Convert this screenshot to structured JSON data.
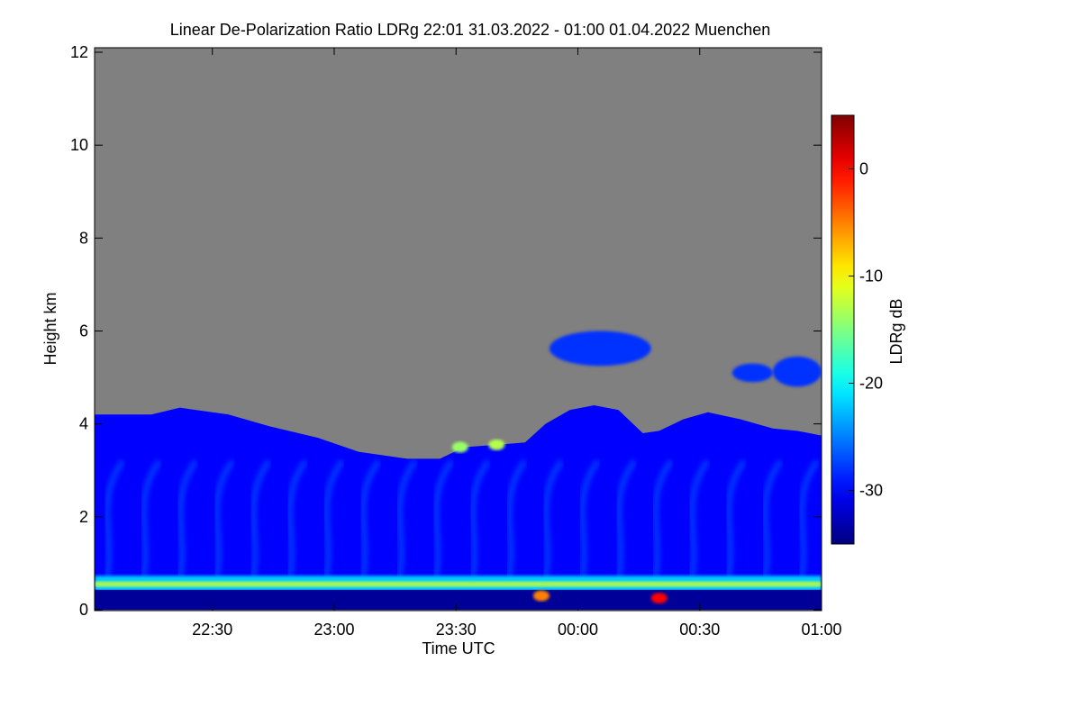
{
  "chart_data": {
    "type": "heatmap",
    "title": "Linear De-Polarization Ratio LDRg   22:01 31.03.2022 - 01:00 01.04.2022 Muenchen",
    "xlabel": "Time UTC",
    "ylabel": "Height km",
    "x_range_minutes_after_22": [
      1,
      180
    ],
    "ylim": [
      0,
      12
    ],
    "x_ticks": [
      {
        "minutes_after_22": 30,
        "label": "22:30"
      },
      {
        "minutes_after_22": 60,
        "label": "23:00"
      },
      {
        "minutes_after_22": 90,
        "label": "23:30"
      },
      {
        "minutes_after_22": 120,
        "label": "00:00"
      },
      {
        "minutes_after_22": 150,
        "label": "00:30"
      },
      {
        "minutes_after_22": 180,
        "label": "01:00"
      }
    ],
    "y_ticks": [
      {
        "value": 0,
        "label": "0"
      },
      {
        "value": 2,
        "label": "2"
      },
      {
        "value": 4,
        "label": "4"
      },
      {
        "value": 6,
        "label": "6"
      },
      {
        "value": 8,
        "label": "8"
      },
      {
        "value": 10,
        "label": "10"
      },
      {
        "value": 12,
        "label": "12"
      }
    ],
    "colorbar": {
      "label": "LDRg dB",
      "range": [
        -35,
        5
      ],
      "ticks": [
        {
          "value": 0,
          "label": "0"
        },
        {
          "value": -10,
          "label": "-10"
        },
        {
          "value": -20,
          "label": "-20"
        },
        {
          "value": -30,
          "label": "-30"
        }
      ]
    },
    "no_signal_color": "#808080",
    "layers": {
      "aerosol_top_km": [
        {
          "t": 1,
          "h": 4.2
        },
        {
          "t": 15,
          "h": 4.2
        },
        {
          "t": 22,
          "h": 4.35
        },
        {
          "t": 26,
          "h": 4.3
        },
        {
          "t": 34,
          "h": 4.2
        },
        {
          "t": 44,
          "h": 3.95
        },
        {
          "t": 56,
          "h": 3.7
        },
        {
          "t": 66,
          "h": 3.4
        },
        {
          "t": 78,
          "h": 3.25
        },
        {
          "t": 86,
          "h": 3.25
        },
        {
          "t": 92,
          "h": 3.5
        },
        {
          "t": 100,
          "h": 3.55
        },
        {
          "t": 107,
          "h": 3.6
        },
        {
          "t": 112,
          "h": 4.0
        },
        {
          "t": 118,
          "h": 4.3
        },
        {
          "t": 124,
          "h": 4.4
        },
        {
          "t": 130,
          "h": 4.3
        },
        {
          "t": 136,
          "h": 3.8
        },
        {
          "t": 140,
          "h": 3.85
        },
        {
          "t": 146,
          "h": 4.1
        },
        {
          "t": 152,
          "h": 4.25
        },
        {
          "t": 160,
          "h": 4.1
        },
        {
          "t": 168,
          "h": 3.9
        },
        {
          "t": 174,
          "h": 3.85
        },
        {
          "t": 180,
          "h": 3.75
        }
      ],
      "boundary_layer_band_km": [
        0.45,
        0.65
      ],
      "elevated_cirrus_patches": [
        {
          "t0": 113,
          "t1": 138,
          "h0": 5.25,
          "h1": 6.0
        },
        {
          "t0": 158,
          "t1": 168,
          "h0": 4.9,
          "h1": 5.3
        },
        {
          "t0": 168,
          "t1": 180,
          "h0": 4.8,
          "h1": 5.45
        }
      ],
      "high_ldr_spots": [
        {
          "t": 111,
          "h": 0.3,
          "value": -5
        },
        {
          "t": 140,
          "h": 0.25,
          "value": 0
        },
        {
          "t": 91,
          "h": 3.5,
          "value": -14
        },
        {
          "t": 100,
          "h": 3.55,
          "value": -13
        }
      ],
      "background_ldr_db": -30,
      "band_ldr_db": -18
    }
  }
}
